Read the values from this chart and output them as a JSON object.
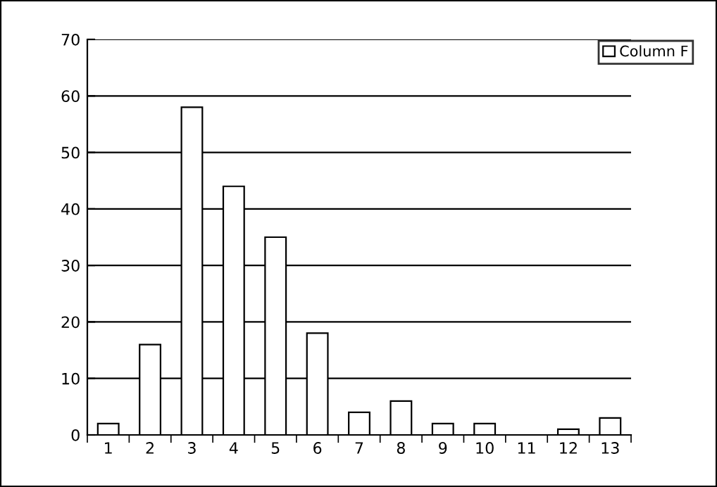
{
  "chart_data": {
    "type": "bar",
    "categories": [
      "1",
      "2",
      "3",
      "4",
      "5",
      "6",
      "7",
      "8",
      "9",
      "10",
      "11",
      "12",
      "13"
    ],
    "series": [
      {
        "name": "Column F",
        "color": "#ffffff",
        "values": [
          2,
          16,
          58,
          44,
          35,
          18,
          4,
          6,
          2,
          2,
          null,
          1,
          3
        ]
      }
    ],
    "ylim": [
      0,
      70
    ],
    "yticks": [
      0,
      10,
      20,
      30,
      40,
      50,
      60,
      70
    ],
    "grid": "y",
    "legend": "top right"
  }
}
